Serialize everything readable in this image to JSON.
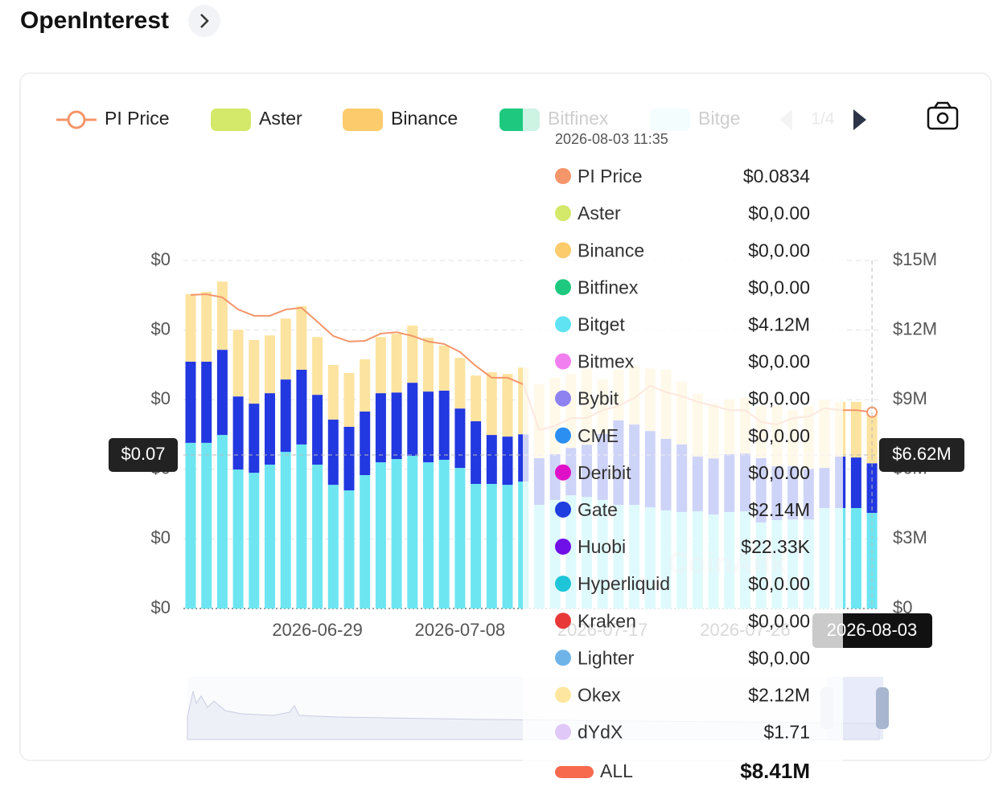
{
  "header": {
    "title": "OpenInterest"
  },
  "chart_data": {
    "type": "bar",
    "stacked": true,
    "categories": [
      null,
      null,
      null,
      null,
      null,
      null,
      null,
      null,
      "2026-06-29",
      null,
      null,
      null,
      null,
      null,
      null,
      null,
      null,
      "2026-07-08",
      null,
      null,
      null,
      null,
      null,
      null,
      null,
      null,
      "2026-07-17",
      null,
      null,
      null,
      null,
      null,
      null,
      null,
      null,
      "2026-07-26",
      null,
      null,
      null,
      null,
      null,
      null,
      null,
      "2026-08-03"
    ],
    "series": [
      {
        "color": "#6de6f2",
        "values": [
          7140000,
          7140000,
          7480000,
          5990000,
          5850000,
          6200000,
          6750000,
          7070000,
          6200000,
          5330000,
          5090000,
          5750000,
          6300000,
          6440000,
          6580000,
          6300000,
          6410000,
          6060000,
          5370000,
          5370000,
          5330000,
          5470000,
          4470000,
          4680000,
          4880000,
          4810000,
          4680000,
          4470000,
          4470000,
          4360000,
          4230000,
          4160000,
          4190000,
          4050000,
          4160000,
          4190000,
          3710000,
          3810000,
          3840000,
          3840000,
          4330000,
          4330000,
          4330000,
          4120000
        ]
      },
      {
        "color": "#2238e0",
        "values": [
          3500000,
          3500000,
          3670000,
          3150000,
          2980000,
          3080000,
          3120000,
          3220000,
          3010000,
          2810000,
          2740000,
          2740000,
          2980000,
          2870000,
          3150000,
          3050000,
          2980000,
          2560000,
          2700000,
          2110000,
          2080000,
          2040000,
          2010000,
          1970000,
          2040000,
          2250000,
          2840000,
          3640000,
          3460000,
          3290000,
          3080000,
          2910000,
          2360000,
          2420000,
          2490000,
          2490000,
          2770000,
          2320000,
          2290000,
          2180000,
          1730000,
          2220000,
          2180000,
          2140000
        ]
      },
      {
        "color": "#fde3a0",
        "values": [
          2910000,
          3010000,
          2940000,
          2870000,
          2740000,
          2490000,
          2630000,
          2740000,
          2490000,
          2360000,
          2320000,
          2250000,
          2420000,
          2530000,
          2460000,
          2320000,
          1940000,
          2180000,
          1970000,
          2700000,
          2700000,
          2870000,
          3190000,
          3290000,
          3190000,
          3290000,
          2360000,
          2180000,
          2530000,
          2700000,
          2980000,
          2700000,
          2700000,
          2360000,
          2360000,
          2390000,
          2250000,
          2600000,
          2420000,
          2700000,
          2940000,
          2360000,
          2390000,
          2120000
        ]
      },
      {
        "type": "line",
        "axis": "y2",
        "color": "#f4956a",
        "values": [
          0.1171,
          0.1173,
          0.1164,
          0.1129,
          0.1111,
          0.1111,
          0.1129,
          0.1134,
          0.1094,
          0.1053,
          0.1037,
          0.1039,
          0.106,
          0.1064,
          0.1053,
          0.1037,
          0.103,
          0.1007,
          0.0967,
          0.0933,
          0.0933,
          0.0914,
          0.0783,
          0.0794,
          0.0817,
          0.0817,
          0.084,
          0.0852,
          0.0875,
          0.091,
          0.0891,
          0.088,
          0.0864,
          0.0852,
          0.084,
          0.084,
          0.0806,
          0.0799,
          0.0817,
          0.0822,
          0.0845,
          0.084,
          0.084,
          0.0834
        ]
      }
    ],
    "ylim": [
      0,
      15000000
    ],
    "yticks": [
      {
        "value": 0,
        "label": "$0"
      },
      {
        "value": 3000000,
        "label": "$3M"
      },
      {
        "value": 6000000,
        "label": "$6M"
      },
      {
        "value": 9000000,
        "label": "$9M"
      },
      {
        "value": 12000000,
        "label": "$12M"
      },
      {
        "value": 15000000,
        "label": "$15M"
      }
    ],
    "y2lim": [
      0.027,
      0.127
    ],
    "y2ticks": [
      {
        "value": 0.027,
        "label": "$0"
      },
      {
        "value": 0.047,
        "label": "$0"
      },
      {
        "value": 0.067,
        "label": "$0"
      },
      {
        "value": 0.087,
        "label": "$0"
      },
      {
        "value": 0.107,
        "label": "$0"
      },
      {
        "value": 0.127,
        "label": "$0"
      }
    ],
    "grid": true,
    "legend": {
      "items": [
        {
          "name": "PI Price",
          "color": "#f4956a",
          "marker": "line"
        },
        {
          "name": "Aster",
          "color": "#d4e86a"
        },
        {
          "name": "Binance",
          "color": "#fccb6b"
        },
        {
          "name": "Bitfinex",
          "color": "#1ec97f"
        },
        {
          "name": "Bitge",
          "color": "#c8f4f8"
        }
      ],
      "page": "1/4"
    },
    "crosshair": {
      "y2_label": "$0.07",
      "y_label": "$6.62M"
    },
    "watermark": "CoinAnk"
  },
  "tooltip": {
    "time": "2026-08-03 11:35",
    "rows": [
      {
        "name": "PI Price",
        "value": "$0.0834",
        "color": "#f4956a"
      },
      {
        "name": "Aster",
        "value": "$0,0.00",
        "color": "#d4e86a"
      },
      {
        "name": "Binance",
        "value": "$0,0.00",
        "color": "#fccb6b"
      },
      {
        "name": "Bitfinex",
        "value": "$0,0.00",
        "color": "#1ec97f"
      },
      {
        "name": "Bitget",
        "value": "$4.12M",
        "color": "#5fe3f2"
      },
      {
        "name": "Bitmex",
        "value": "$0,0.00",
        "color": "#f27ff0"
      },
      {
        "name": "Bybit",
        "value": "$0,0.00",
        "color": "#8d82f0"
      },
      {
        "name": "CME",
        "value": "$0,0.00",
        "color": "#2b8ff2"
      },
      {
        "name": "Deribit",
        "value": "$0,0.00",
        "color": "#e010c8"
      },
      {
        "name": "Gate",
        "value": "$2.14M",
        "color": "#1f3ee0"
      },
      {
        "name": "Huobi",
        "value": "$22.33K",
        "color": "#7010e8"
      },
      {
        "name": "Hyperliquid",
        "value": "$0,0.00",
        "color": "#1ec5d8"
      },
      {
        "name": "Kraken",
        "value": "$0,0.00",
        "color": "#e83838"
      },
      {
        "name": "Lighter",
        "value": "$0,0.00",
        "color": "#6fb4e8"
      },
      {
        "name": "Okex",
        "value": "$2.12M",
        "color": "#fde7a0"
      },
      {
        "name": "dYdX",
        "value": "$1.71",
        "color": "#e0c8f8"
      }
    ],
    "total": {
      "name": "ALL",
      "value": "$8.41M",
      "color": "#f86a4e"
    }
  }
}
